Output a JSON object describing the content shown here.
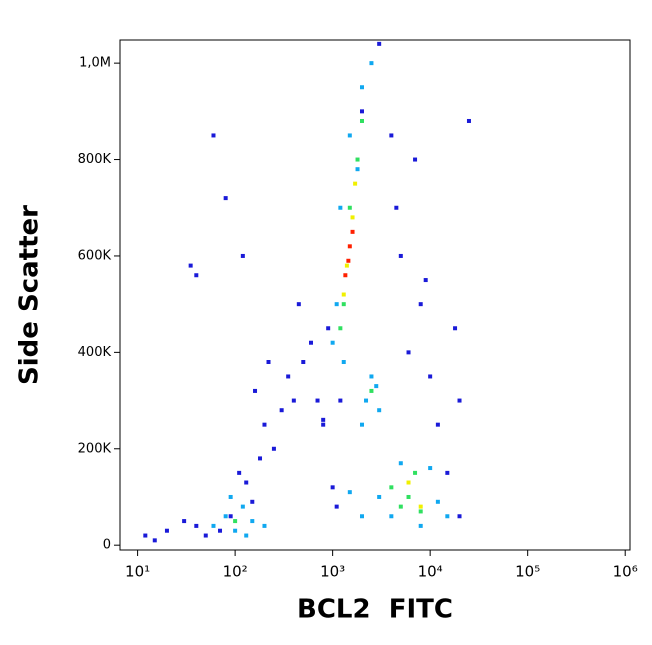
{
  "chart_data": {
    "type": "scatter",
    "xlabel": "BCL2  FITC",
    "ylabel": "Side Scatter",
    "xscale": "log",
    "xlim": [
      6.6,
      1120000
    ],
    "ylim": [
      -10000,
      1048000
    ],
    "xticks": [
      {
        "value": 10,
        "label": "10¹"
      },
      {
        "value": 100,
        "label": "10²"
      },
      {
        "value": 1000,
        "label": "10³"
      },
      {
        "value": 10000,
        "label": "10⁴"
      },
      {
        "value": 100000,
        "label": "10⁵"
      },
      {
        "value": 1000000,
        "label": "10⁶"
      }
    ],
    "yticks": [
      0,
      {
        "value": 200000,
        "label": "200K"
      },
      {
        "value": 400000,
        "label": "400K"
      },
      {
        "value": 600000,
        "label": "600K"
      },
      {
        "value": 800000,
        "label": "800K"
      },
      {
        "value": 1000000,
        "label": "1,0M"
      }
    ],
    "grid": false,
    "series": [
      {
        "color": "#1a1ad8",
        "x": [
          12,
          15,
          20,
          30,
          40,
          50,
          70,
          90,
          110,
          130,
          150,
          180,
          200,
          250,
          300,
          350,
          400,
          500,
          600,
          700,
          800,
          900,
          1200,
          2000,
          3000,
          4000,
          5000,
          6000,
          8000,
          10000,
          12000,
          15000,
          20000,
          25000,
          40,
          60,
          80,
          120,
          160,
          220,
          450,
          800,
          4500,
          7000,
          9000,
          18000,
          35,
          1000,
          1100,
          20000
        ],
        "values": [
          20000,
          10000,
          30000,
          50000,
          40000,
          20000,
          30000,
          60000,
          150000,
          130000,
          90000,
          180000,
          250000,
          200000,
          280000,
          350000,
          300000,
          380000,
          420000,
          300000,
          260000,
          450000,
          300000,
          900000,
          1040000,
          850000,
          600000,
          400000,
          500000,
          350000,
          250000,
          150000,
          300000,
          880000,
          560000,
          850000,
          720000,
          600000,
          320000,
          380000,
          500000,
          250000,
          700000,
          800000,
          550000,
          450000,
          580000,
          120000,
          80000,
          60000
        ]
      },
      {
        "color": "#10a8f0",
        "x": [
          60,
          80,
          100,
          120,
          150,
          200,
          90,
          130,
          1000,
          1100,
          1200,
          1500,
          2000,
          2500,
          1300,
          1800,
          2200,
          2500,
          3000,
          2800,
          2000,
          3000,
          4000,
          5000,
          8000,
          12000,
          15000,
          10000,
          1500,
          2000
        ],
        "values": [
          40000,
          60000,
          30000,
          80000,
          50000,
          40000,
          100000,
          20000,
          420000,
          500000,
          700000,
          850000,
          950000,
          1000000,
          380000,
          780000,
          300000,
          350000,
          280000,
          330000,
          250000,
          100000,
          60000,
          170000,
          40000,
          90000,
          60000,
          160000,
          110000,
          60000
        ]
      },
      {
        "color": "#30e060",
        "x": [
          1300,
          1500,
          1800,
          1200,
          2500,
          4000,
          6000,
          8000,
          5000,
          7000,
          2000,
          100
        ],
        "values": [
          500000,
          700000,
          800000,
          450000,
          320000,
          120000,
          100000,
          70000,
          80000,
          150000,
          880000,
          50000
        ]
      },
      {
        "color": "#f0f000",
        "x": [
          1400,
          1600,
          1300,
          6000,
          8000,
          1700
        ],
        "values": [
          580000,
          680000,
          520000,
          130000,
          80000,
          750000
        ]
      },
      {
        "color": "#ff2000",
        "x": [
          1500,
          1350,
          1600,
          1450
        ],
        "values": [
          620000,
          560000,
          650000,
          590000
        ]
      }
    ]
  }
}
